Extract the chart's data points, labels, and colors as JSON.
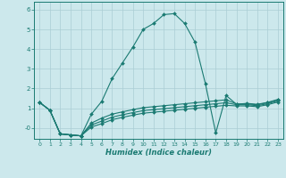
{
  "xlabel": "Humidex (Indice chaleur)",
  "bg_color": "#cce8ec",
  "grid_color": "#aacdd4",
  "line_color": "#1a7a72",
  "xlim": [
    -0.5,
    23.5
  ],
  "ylim": [
    -0.55,
    6.4
  ],
  "xtick_labels": [
    "0",
    "1",
    "2",
    "3",
    "4",
    "5",
    "6",
    "7",
    "8",
    "9",
    "10",
    "11",
    "12",
    "13",
    "14",
    "15",
    "16",
    "17",
    "18",
    "19",
    "20",
    "21",
    "22",
    "23"
  ],
  "xticks": [
    0,
    1,
    2,
    3,
    4,
    5,
    6,
    7,
    8,
    9,
    10,
    11,
    12,
    13,
    14,
    15,
    16,
    17,
    18,
    19,
    20,
    21,
    22,
    23
  ],
  "yticks": [
    0,
    1,
    2,
    3,
    4,
    5,
    6
  ],
  "ytick_labels": [
    "-0",
    "1",
    "2",
    "3",
    "4",
    "5",
    "6"
  ],
  "series": [
    {
      "x": [
        0,
        1,
        2,
        3,
        4,
        5,
        6,
        7,
        8,
        9,
        10,
        11,
        12,
        13,
        14,
        15,
        16,
        17,
        18,
        19,
        20,
        21,
        22,
        23
      ],
      "y": [
        1.3,
        0.9,
        -0.3,
        -0.35,
        -0.4,
        0.7,
        1.35,
        2.5,
        3.3,
        4.1,
        5.0,
        5.3,
        5.75,
        5.8,
        5.3,
        4.35,
        2.25,
        -0.25,
        1.65,
        1.2,
        1.25,
        1.2,
        1.3,
        1.45
      ]
    },
    {
      "x": [
        0,
        1,
        2,
        3,
        4,
        5,
        6,
        7,
        8,
        9,
        10,
        11,
        12,
        13,
        14,
        15,
        16,
        17,
        18,
        19,
        20,
        21,
        22,
        23
      ],
      "y": [
        1.3,
        0.9,
        -0.3,
        -0.35,
        -0.4,
        0.25,
        0.5,
        0.7,
        0.82,
        0.93,
        1.03,
        1.08,
        1.13,
        1.18,
        1.23,
        1.28,
        1.33,
        1.38,
        1.43,
        1.22,
        1.22,
        1.18,
        1.28,
        1.42
      ]
    },
    {
      "x": [
        0,
        1,
        2,
        3,
        4,
        5,
        6,
        7,
        8,
        9,
        10,
        11,
        12,
        13,
        14,
        15,
        16,
        17,
        18,
        19,
        20,
        21,
        22,
        23
      ],
      "y": [
        1.3,
        0.9,
        -0.3,
        -0.35,
        -0.4,
        0.15,
        0.35,
        0.55,
        0.67,
        0.78,
        0.88,
        0.93,
        0.98,
        1.03,
        1.08,
        1.13,
        1.18,
        1.23,
        1.28,
        1.18,
        1.18,
        1.13,
        1.23,
        1.37
      ]
    },
    {
      "x": [
        0,
        1,
        2,
        3,
        4,
        5,
        6,
        7,
        8,
        9,
        10,
        11,
        12,
        13,
        14,
        15,
        16,
        17,
        18,
        19,
        20,
        21,
        22,
        23
      ],
      "y": [
        1.3,
        0.9,
        -0.3,
        -0.35,
        -0.4,
        0.05,
        0.22,
        0.42,
        0.54,
        0.65,
        0.75,
        0.8,
        0.85,
        0.9,
        0.95,
        1.0,
        1.05,
        1.1,
        1.15,
        1.12,
        1.12,
        1.08,
        1.18,
        1.32
      ]
    }
  ],
  "marker": "D",
  "marker_size": 2.0,
  "line_width": 0.8
}
